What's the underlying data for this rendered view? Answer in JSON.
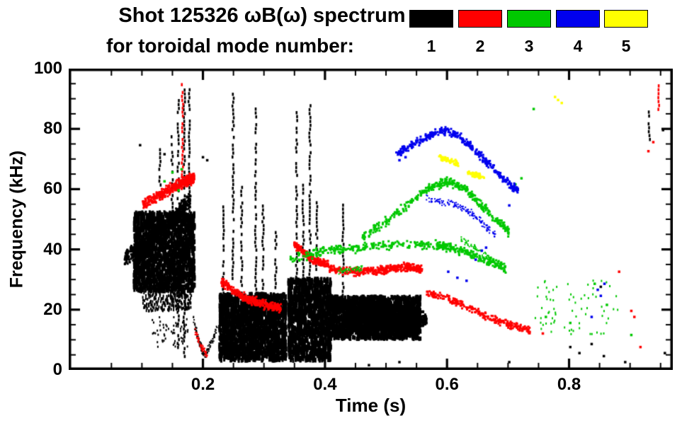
{
  "title": {
    "line1": "Shot 125326 ωB(ω) spectrum",
    "line2": "for toroidal mode number:"
  },
  "legend": {
    "entries": [
      {
        "label": "1",
        "color": "#000000"
      },
      {
        "label": "2",
        "color": "#ff0000"
      },
      {
        "label": "3",
        "color": "#00c800"
      },
      {
        "label": "4",
        "color": "#0000ee"
      },
      {
        "label": "5",
        "color": "#ffff00"
      }
    ]
  },
  "axes": {
    "xlabel": "Time (s)",
    "ylabel": "Frequency (kHz)"
  },
  "chart_data": {
    "type": "scatter",
    "title": "Shot 125326 ωB(ω) spectrum for toroidal mode numbers 1-5",
    "xlabel": "Time (s)",
    "ylabel": "Frequency (kHz)",
    "xlim": [
      -0.02,
      0.97
    ],
    "ylim": [
      0,
      100
    ],
    "xticks": [
      0.2,
      0.4,
      0.6,
      0.8
    ],
    "x_minor_step": 0.05,
    "yticks": [
      0,
      20,
      40,
      60,
      80,
      100
    ],
    "y_minor_step": 5,
    "grid": false,
    "legend_position": "top",
    "series": [
      {
        "name": "n=1",
        "color": "#000000",
        "traces": [
          {
            "pts": [
              [
                0.07,
                37
              ],
              [
                0.095,
                41
              ],
              [
                0.125,
                46
              ],
              [
                0.155,
                52
              ],
              [
                0.178,
                57
              ]
            ],
            "w": 3,
            "count": 500,
            "size": 3
          },
          {
            "pts": [
              [
                0.183,
                17
              ],
              [
                0.193,
                9
              ],
              [
                0.202,
                5
              ],
              [
                0.212,
                9
              ],
              [
                0.222,
                14
              ]
            ],
            "w": 1.5,
            "count": 130,
            "size": 2
          },
          {
            "pts": [
              [
                0.4,
                23
              ],
              [
                0.45,
                21
              ],
              [
                0.5,
                19
              ],
              [
                0.545,
                17.5
              ],
              [
                0.565,
                17
              ]
            ],
            "w": 3,
            "count": 600,
            "size": 3
          }
        ],
        "blobs": [
          {
            "t0": 0.085,
            "t1": 0.185,
            "f0": 27,
            "f1": 53,
            "count": 1700,
            "sw": 3,
            "sh": 7
          },
          {
            "t0": 0.1,
            "t1": 0.18,
            "f0": 20,
            "f1": 28,
            "count": 280,
            "sw": 2,
            "sh": 4
          },
          {
            "t0": 0.115,
            "t1": 0.175,
            "f0": 8,
            "f1": 18,
            "count": 60,
            "sw": 2,
            "sh": 3
          },
          {
            "t0": 0.225,
            "t1": 0.335,
            "f0": 4,
            "f1": 26,
            "count": 1900,
            "sw": 3,
            "sh": 7
          },
          {
            "t0": 0.338,
            "t1": 0.408,
            "f0": 4,
            "f1": 31,
            "count": 1300,
            "sw": 3,
            "sh": 7
          },
          {
            "t0": 0.405,
            "t1": 0.555,
            "f0": 11,
            "f1": 25,
            "count": 2100,
            "sw": 3,
            "sh": 6
          },
          {
            "t0": 0.44,
            "t1": 0.545,
            "f0": 14,
            "f1": 22,
            "count": 900,
            "sw": 3,
            "sh": 6
          }
        ],
        "bursts": [
          {
            "t": 0.128,
            "f0": 58,
            "f1": 74
          },
          {
            "t": 0.148,
            "f0": 22,
            "f1": 79
          },
          {
            "t": 0.158,
            "f0": 8,
            "f1": 91
          },
          {
            "t": 0.168,
            "f0": 5,
            "f1": 95
          },
          {
            "t": 0.176,
            "f0": 35,
            "f1": 96
          },
          {
            "t": 0.232,
            "f0": 26,
            "f1": 55
          },
          {
            "t": 0.248,
            "f0": 27,
            "f1": 92
          },
          {
            "t": 0.262,
            "f0": 26,
            "f1": 62
          },
          {
            "t": 0.285,
            "f0": 26,
            "f1": 88
          },
          {
            "t": 0.297,
            "f0": 25,
            "f1": 55
          },
          {
            "t": 0.318,
            "f0": 24,
            "f1": 47
          },
          {
            "t": 0.352,
            "f0": 30,
            "f1": 87
          },
          {
            "t": 0.363,
            "f0": 28,
            "f1": 63
          },
          {
            "t": 0.374,
            "f0": 31,
            "f1": 89
          },
          {
            "t": 0.385,
            "f0": 30,
            "f1": 56
          },
          {
            "t": 0.428,
            "f0": 24,
            "f1": 56
          },
          {
            "t": 0.93,
            "f0": 77,
            "f1": 87
          }
        ],
        "points": [
          [
            0.095,
            75
          ],
          [
            0.135,
            72
          ],
          [
            0.198,
            71
          ],
          [
            0.205,
            70
          ],
          [
            0.47,
            2
          ],
          [
            0.52,
            3
          ],
          [
            0.7,
            3
          ],
          [
            0.8,
            8
          ],
          [
            0.815,
            6
          ],
          [
            0.835,
            9
          ],
          [
            0.85,
            28
          ],
          [
            0.855,
            5
          ],
          [
            0.89,
            3
          ],
          [
            0.952,
            80
          ],
          [
            0.955,
            6
          ]
        ]
      },
      {
        "name": "n=2",
        "color": "#ff0000",
        "traces": [
          {
            "pts": [
              [
                0.1,
                55
              ],
              [
                0.125,
                58
              ],
              [
                0.15,
                61
              ],
              [
                0.17,
                63
              ],
              [
                0.184,
                64
              ]
            ],
            "w": 2.2,
            "count": 380,
            "size": 3
          },
          {
            "pts": [
              [
                0.186,
                13
              ],
              [
                0.196,
                8
              ],
              [
                0.206,
                5
              ]
            ],
            "w": 1.4,
            "count": 60,
            "size": 2
          },
          {
            "pts": [
              [
                0.228,
                30
              ],
              [
                0.252,
                26
              ],
              [
                0.276,
                23.5
              ],
              [
                0.3,
                22
              ],
              [
                0.326,
                21
              ]
            ],
            "w": 1.8,
            "count": 300,
            "size": 3
          },
          {
            "pts": [
              [
                0.348,
                42
              ],
              [
                0.362,
                39.5
              ],
              [
                0.376,
                37.5
              ],
              [
                0.39,
                36
              ],
              [
                0.404,
                35
              ]
            ],
            "w": 1.6,
            "count": 220,
            "size": 3
          },
          {
            "pts": [
              [
                0.405,
                34
              ],
              [
                0.45,
                33
              ],
              [
                0.49,
                33.5
              ],
              [
                0.53,
                34.5
              ],
              [
                0.558,
                34
              ]
            ],
            "w": 1.6,
            "count": 340,
            "size": 3
          },
          {
            "pts": [
              [
                0.565,
                26
              ],
              [
                0.6,
                24
              ],
              [
                0.635,
                21
              ],
              [
                0.67,
                17.5
              ],
              [
                0.705,
                15
              ],
              [
                0.735,
                13.5
              ]
            ],
            "w": 1.5,
            "count": 240,
            "size": 3
          }
        ],
        "blobs": [],
        "bursts": [
          {
            "t": 0.165,
            "f0": 64,
            "f1": 96
          },
          {
            "t": 0.945,
            "f0": 87,
            "f1": 96
          }
        ],
        "points": [
          [
            0.755,
            12.5
          ],
          [
            0.88,
            33
          ],
          [
            0.9,
            20
          ],
          [
            0.905,
            18
          ],
          [
            0.915,
            8
          ],
          [
            0.928,
            73
          ],
          [
            0.936,
            76
          ]
        ]
      },
      {
        "name": "n=3",
        "color": "#00c800",
        "traces": [
          {
            "pts": [
              [
                0.34,
                37
              ],
              [
                0.4,
                40
              ],
              [
                0.46,
                41
              ],
              [
                0.52,
                42
              ],
              [
                0.58,
                42
              ],
              [
                0.62,
                40
              ],
              [
                0.66,
                37
              ],
              [
                0.695,
                34
              ]
            ],
            "w": 1.8,
            "count": 420,
            "size": 3
          },
          {
            "pts": [
              [
                0.46,
                44
              ],
              [
                0.5,
                50
              ],
              [
                0.54,
                56
              ],
              [
                0.57,
                61
              ],
              [
                0.6,
                63
              ],
              [
                0.63,
                60
              ],
              [
                0.655,
                55
              ],
              [
                0.68,
                50
              ],
              [
                0.7,
                46
              ]
            ],
            "w": 1.8,
            "count": 380,
            "size": 3
          },
          {
            "pts": [
              [
                0.62,
                44
              ],
              [
                0.65,
                40
              ],
              [
                0.675,
                36
              ],
              [
                0.695,
                33
              ]
            ],
            "w": 1.4,
            "count": 90,
            "size": 2
          },
          {
            "pts": [
              [
                0.42,
                33
              ],
              [
                0.46,
                34
              ]
            ],
            "w": 1.2,
            "count": 50,
            "size": 2
          }
        ],
        "blobs": [
          {
            "t0": 0.74,
            "t1": 0.88,
            "f0": 12,
            "f1": 30,
            "count": 70,
            "sw": 2,
            "sh": 3
          }
        ],
        "bursts": [],
        "points": [
          [
            0.135,
            63
          ],
          [
            0.148,
            66
          ],
          [
            0.158,
            60
          ],
          [
            0.163,
            67
          ],
          [
            0.71,
            62
          ],
          [
            0.72,
            64
          ],
          [
            0.74,
            87
          ],
          [
            0.76,
            18
          ],
          [
            0.8,
            16
          ],
          [
            0.84,
            29
          ],
          [
            0.86,
            22
          ],
          [
            0.9,
            12
          ]
        ]
      },
      {
        "name": "n=4",
        "color": "#0000ee",
        "traces": [
          {
            "pts": [
              [
                0.515,
                72
              ],
              [
                0.54,
                75
              ],
              [
                0.565,
                77.5
              ],
              [
                0.59,
                80
              ],
              [
                0.615,
                78.5
              ],
              [
                0.64,
                74
              ],
              [
                0.66,
                70
              ],
              [
                0.68,
                66
              ],
              [
                0.7,
                62
              ],
              [
                0.715,
                60
              ]
            ],
            "w": 1.6,
            "count": 380,
            "size": 3
          },
          {
            "pts": [
              [
                0.565,
                57
              ],
              [
                0.59,
                56
              ],
              [
                0.615,
                55
              ],
              [
                0.64,
                52
              ],
              [
                0.662,
                48
              ],
              [
                0.678,
                45
              ]
            ],
            "w": 1.4,
            "count": 140,
            "size": 2
          }
        ],
        "blobs": [],
        "bursts": [],
        "points": [
          [
            0.52,
            70
          ],
          [
            0.53,
            71
          ],
          [
            0.6,
            33
          ],
          [
            0.615,
            31
          ],
          [
            0.63,
            30
          ],
          [
            0.645,
            37
          ],
          [
            0.655,
            40
          ],
          [
            0.662,
            41
          ],
          [
            0.7,
            55
          ],
          [
            0.835,
            18
          ],
          [
            0.845,
            27
          ],
          [
            0.85,
            25
          ],
          [
            0.856,
            29
          ]
        ]
      },
      {
        "name": "n=5",
        "color": "#ffff00",
        "traces": [
          {
            "pts": [
              [
                0.585,
                71
              ],
              [
                0.6,
                70
              ],
              [
                0.617,
                69
              ]
            ],
            "w": 1.1,
            "count": 60,
            "size": 3
          },
          {
            "pts": [
              [
                0.632,
                66
              ],
              [
                0.646,
                65
              ],
              [
                0.659,
                64
              ]
            ],
            "w": 1.1,
            "count": 50,
            "size": 3
          }
        ],
        "blobs": [],
        "bursts": [],
        "points": [
          [
            0.775,
            91
          ],
          [
            0.78,
            90
          ],
          [
            0.786,
            89
          ]
        ]
      }
    ]
  }
}
